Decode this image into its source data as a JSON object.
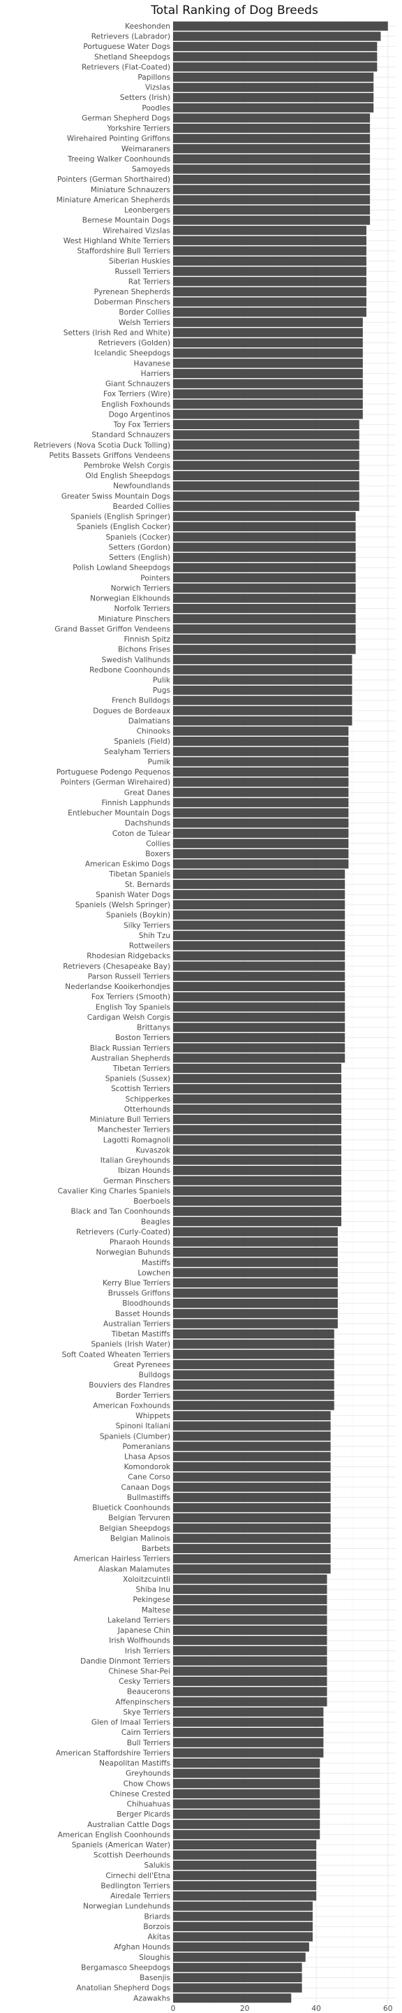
{
  "chart_data": {
    "type": "bar",
    "orientation": "horizontal",
    "title": "Total Ranking of Dog Breeds",
    "xlabel": "",
    "ylabel": "",
    "xlim": [
      0,
      62
    ],
    "xticks": [
      0,
      20,
      40,
      60
    ],
    "grid": true,
    "bar_color": "#4d4d4d",
    "categories": [
      "Keeshonden",
      "Retrievers (Labrador)",
      "Portuguese Water Dogs",
      "Shetland Sheepdogs",
      "Retrievers (Flat-Coated)",
      "Papillons",
      "Vizslas",
      "Setters (Irish)",
      "Poodles",
      "German Shepherd Dogs",
      "Yorkshire Terriers",
      "Wirehaired Pointing Griffons",
      "Weimaraners",
      "Treeing Walker Coonhounds",
      "Samoyeds",
      "Pointers (German Shorthaired)",
      "Miniature Schnauzers",
      "Miniature American Shepherds",
      "Leonbergers",
      "Bernese Mountain Dogs",
      "Wirehaired Vizslas",
      "West Highland White Terriers",
      "Staffordshire Bull Terriers",
      "Siberian Huskies",
      "Russell Terriers",
      "Rat Terriers",
      "Pyrenean Shepherds",
      "Doberman Pinschers",
      "Border Collies",
      "Welsh Terriers",
      "Setters (Irish Red and White)",
      "Retrievers (Golden)",
      "Icelandic Sheepdogs",
      "Havanese",
      "Harriers",
      "Giant Schnauzers",
      "Fox Terriers (Wire)",
      "English Foxhounds",
      "Dogo Argentinos",
      "Toy Fox Terriers",
      "Standard Schnauzers",
      "Retrievers (Nova Scotia Duck Tolling)",
      "Petits Bassets Griffons Vendeens",
      "Pembroke Welsh Corgis",
      "Old English Sheepdogs",
      "Newfoundlands",
      "Greater Swiss Mountain Dogs",
      "Bearded Collies",
      "Spaniels (English Springer)",
      "Spaniels (English Cocker)",
      "Spaniels (Cocker)",
      "Setters (Gordon)",
      "Setters (English)",
      "Polish Lowland Sheepdogs",
      "Pointers",
      "Norwich Terriers",
      "Norwegian Elkhounds",
      "Norfolk Terriers",
      "Miniature Pinschers",
      "Grand Basset Griffon Vendeens",
      "Finnish Spitz",
      "Bichons Frises",
      "Swedish Vallhunds",
      "Redbone Coonhounds",
      "Pulik",
      "Pugs",
      "French Bulldogs",
      "Dogues de Bordeaux",
      "Dalmatians",
      "Chinooks",
      "Spaniels (Field)",
      "Sealyham Terriers",
      "Pumik",
      "Portuguese Podengo Pequenos",
      "Pointers (German Wirehaired)",
      "Great Danes",
      "Finnish Lapphunds",
      "Entlebucher Mountain Dogs",
      "Dachshunds",
      "Coton de Tulear",
      "Collies",
      "Boxers",
      "American Eskimo Dogs",
      "Tibetan Spaniels",
      "St. Bernards",
      "Spanish Water Dogs",
      "Spaniels (Welsh Springer)",
      "Spaniels (Boykin)",
      "Silky Terriers",
      "Shih Tzu",
      "Rottweilers",
      "Rhodesian Ridgebacks",
      "Retrievers (Chesapeake Bay)",
      "Parson Russell Terriers",
      "Nederlandse Kooikerhondjes",
      "Fox Terriers (Smooth)",
      "English Toy Spaniels",
      "Cardigan Welsh Corgis",
      "Brittanys",
      "Boston Terriers",
      "Black Russian Terriers",
      "Australian Shepherds",
      "Tibetan Terriers",
      "Spaniels (Sussex)",
      "Scottish Terriers",
      "Schipperkes",
      "Otterhounds",
      "Miniature Bull Terriers",
      "Manchester Terriers",
      "Lagotti Romagnoli",
      "Kuvaszok",
      "Italian Greyhounds",
      "Ibizan Hounds",
      "German Pinschers",
      "Cavalier King Charles Spaniels",
      "Boerboels",
      "Black and Tan Coonhounds",
      "Beagles",
      "Retrievers (Curly-Coated)",
      "Pharaoh Hounds",
      "Norwegian Buhunds",
      "Mastiffs",
      "Lowchen",
      "Kerry Blue Terriers",
      "Brussels Griffons",
      "Bloodhounds",
      "Basset Hounds",
      "Australian Terriers",
      "Tibetan Mastiffs",
      "Spaniels (Irish Water)",
      "Soft Coated Wheaten Terriers",
      "Great Pyrenees",
      "Bulldogs",
      "Bouviers des Flandres",
      "Border Terriers",
      "American Foxhounds",
      "Whippets",
      "Spinoni Italiani",
      "Spaniels (Clumber)",
      "Pomeranians",
      "Lhasa Apsos",
      "Komondorok",
      "Cane Corso",
      "Canaan Dogs",
      "Bullmastiffs",
      "Bluetick Coonhounds",
      "Belgian Tervuren",
      "Belgian Sheepdogs",
      "Belgian Malinois",
      "Barbets",
      "American Hairless Terriers",
      "Alaskan Malamutes",
      "Xoloitzcuintli",
      "Shiba Inu",
      "Pekingese",
      "Maltese",
      "Lakeland Terriers",
      "Japanese Chin",
      "Irish Wolfhounds",
      "Irish Terriers",
      "Dandie Dinmont Terriers",
      "Chinese Shar-Pei",
      "Cesky Terriers",
      "Beaucerons",
      "Affenpinschers",
      "Skye Terriers",
      "Glen of Imaal Terriers",
      "Cairn Terriers",
      "Bull Terriers",
      "American Staffordshire Terriers",
      "Neapolitan Mastiffs",
      "Greyhounds",
      "Chow Chows",
      "Chinese Crested",
      "Chihuahuas",
      "Berger Picards",
      "Australian Cattle Dogs",
      "American English Coonhounds",
      "Spaniels (American Water)",
      "Scottish Deerhounds",
      "Salukis",
      "Cirnechi dell'Etna",
      "Bedlington Terriers",
      "Airedale Terriers",
      "Norwegian Lundehunds",
      "Briards",
      "Borzois",
      "Akitas",
      "Afghan Hounds",
      "Sloughis",
      "Bergamasco Sheepdogs",
      "Basenjis",
      "Anatolian Shepherd Dogs",
      "Azawakhs"
    ],
    "values": [
      60,
      58,
      57,
      57,
      57,
      56,
      56,
      56,
      56,
      55,
      55,
      55,
      55,
      55,
      55,
      55,
      55,
      55,
      55,
      55,
      54,
      54,
      54,
      54,
      54,
      54,
      54,
      54,
      54,
      53,
      53,
      53,
      53,
      53,
      53,
      53,
      53,
      53,
      53,
      52,
      52,
      52,
      52,
      52,
      52,
      52,
      52,
      52,
      51,
      51,
      51,
      51,
      51,
      51,
      51,
      51,
      51,
      51,
      51,
      51,
      51,
      51,
      50,
      50,
      50,
      50,
      50,
      50,
      50,
      49,
      49,
      49,
      49,
      49,
      49,
      49,
      49,
      49,
      49,
      49,
      49,
      49,
      49,
      48,
      48,
      48,
      48,
      48,
      48,
      48,
      48,
      48,
      48,
      48,
      48,
      48,
      48,
      48,
      48,
      48,
      48,
      48,
      47,
      47,
      47,
      47,
      47,
      47,
      47,
      47,
      47,
      47,
      47,
      47,
      47,
      47,
      47,
      47,
      46,
      46,
      46,
      46,
      46,
      46,
      46,
      46,
      46,
      46,
      45,
      45,
      45,
      45,
      45,
      45,
      45,
      45,
      44,
      44,
      44,
      44,
      44,
      44,
      44,
      44,
      44,
      44,
      44,
      44,
      44,
      44,
      44,
      44,
      43,
      43,
      43,
      43,
      43,
      43,
      43,
      43,
      43,
      43,
      43,
      43,
      43,
      42,
      42,
      42,
      42,
      42,
      41,
      41,
      41,
      41,
      41,
      41,
      41,
      41,
      40,
      40,
      40,
      40,
      40,
      40,
      39,
      39,
      39,
      39,
      38,
      37,
      36,
      36,
      36,
      33
    ]
  }
}
